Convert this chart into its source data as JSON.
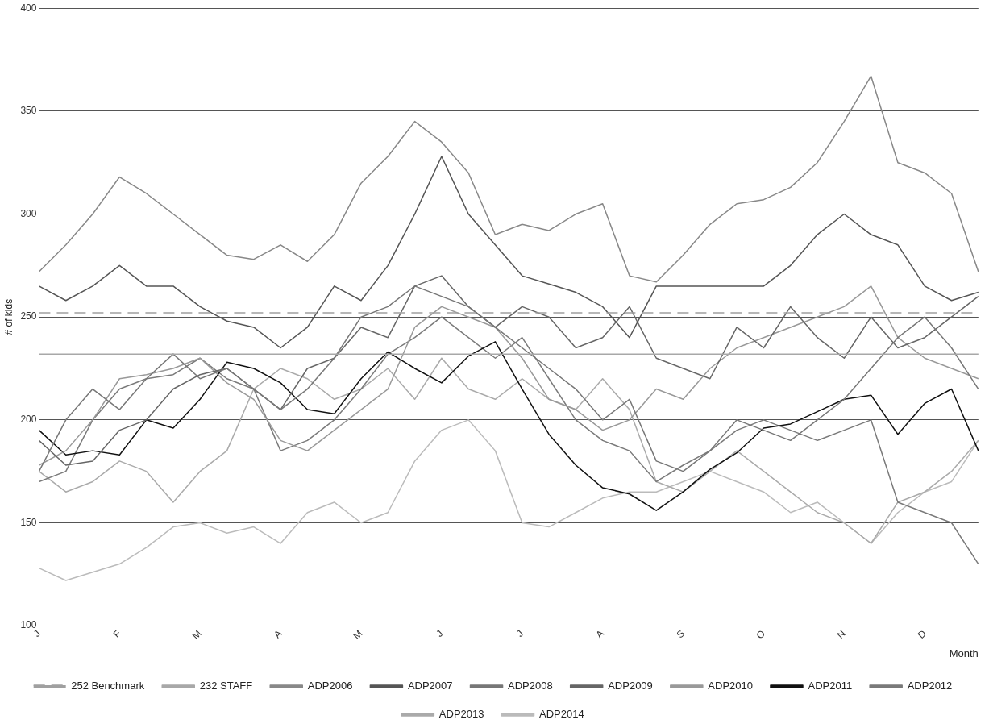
{
  "chart_data": {
    "type": "line",
    "xlabel": "Month",
    "ylabel": "# of kids",
    "ylim": [
      100,
      400
    ],
    "categories": [
      "J",
      null,
      null,
      "F",
      null,
      null,
      "M",
      null,
      null,
      "A",
      null,
      null,
      "M",
      null,
      null,
      "J",
      null,
      null,
      "J",
      null,
      null,
      "A",
      null,
      null,
      "S",
      null,
      null,
      "O",
      null,
      null,
      "N",
      null,
      null,
      "D",
      null,
      null
    ],
    "yticks": [
      100,
      150,
      200,
      250,
      300,
      350,
      400
    ],
    "grid": "y",
    "legend": "bottom",
    "marker": "none",
    "series": [
      {
        "name": "252 Benchmark",
        "color": "#a0a0a0",
        "line_style": "dashed",
        "values": [
          252,
          252,
          252,
          252,
          252,
          252,
          252,
          252,
          252,
          252,
          252,
          252,
          252,
          252,
          252,
          252,
          252,
          252,
          252,
          252,
          252,
          252,
          252,
          252,
          252,
          252,
          252,
          252,
          252,
          252,
          252,
          252,
          252,
          252,
          252,
          252
        ]
      },
      {
        "name": "232 STAFF",
        "color": "#a8a8a8",
        "values": [
          232,
          232,
          232,
          232,
          232,
          232,
          232,
          232,
          232,
          232,
          232,
          232,
          232,
          232,
          232,
          232,
          232,
          232,
          232,
          232,
          232,
          232,
          232,
          232,
          232,
          232,
          232,
          232,
          232,
          232,
          232,
          232,
          232,
          232,
          232,
          232
        ]
      },
      {
        "name": "ADP2006",
        "color": "#888888",
        "values": [
          272,
          285,
          300,
          318,
          310,
          300,
          290,
          280,
          278,
          285,
          277,
          290,
          315,
          328,
          345,
          335,
          320,
          290,
          295,
          292,
          300,
          305,
          270,
          267,
          280,
          295,
          305,
          307,
          313,
          325,
          345,
          367,
          325,
          320,
          310,
          272
        ]
      },
      {
        "name": "ADP2007",
        "color": "#555555",
        "values": [
          265,
          258,
          265,
          275,
          265,
          265,
          255,
          248,
          245,
          235,
          245,
          265,
          258,
          275,
          300,
          328,
          300,
          285,
          270,
          266,
          262,
          255,
          240,
          265,
          265,
          265,
          265,
          265,
          275,
          290,
          300,
          290,
          285,
          265,
          258,
          262
        ]
      },
      {
        "name": "ADP2008",
        "color": "#777777",
        "values": [
          175,
          200,
          215,
          205,
          220,
          232,
          220,
          225,
          215,
          205,
          215,
          230,
          250,
          255,
          265,
          260,
          255,
          245,
          235,
          225,
          215,
          200,
          210,
          180,
          175,
          185,
          200,
          195,
          190,
          200,
          210,
          225,
          240,
          250,
          235,
          215
        ]
      },
      {
        "name": "ADP2009",
        "color": "#666666",
        "values": [
          190,
          178,
          180,
          195,
          200,
          215,
          222,
          225,
          215,
          205,
          225,
          230,
          245,
          240,
          265,
          270,
          255,
          245,
          255,
          250,
          235,
          240,
          255,
          230,
          225,
          220,
          245,
          235,
          255,
          240,
          230,
          250,
          235,
          240,
          250,
          260
        ]
      },
      {
        "name": "ADP2010",
        "color": "#999999",
        "values": [
          178,
          185,
          200,
          220,
          222,
          225,
          230,
          218,
          210,
          190,
          185,
          195,
          205,
          215,
          245,
          255,
          250,
          245,
          230,
          210,
          205,
          195,
          200,
          215,
          210,
          225,
          235,
          240,
          245,
          250,
          255,
          265,
          240,
          230,
          225,
          220
        ]
      },
      {
        "name": "ADP2011",
        "color": "#111111",
        "values": [
          195,
          183,
          185,
          183,
          200,
          196,
          210,
          228,
          225,
          218,
          205,
          203,
          220,
          233,
          225,
          218,
          231,
          238,
          215,
          193,
          178,
          167,
          164,
          156,
          165,
          176,
          184,
          196,
          198,
          204,
          210,
          212,
          193,
          208,
          215,
          185
        ]
      },
      {
        "name": "ADP2012",
        "color": "#7a7a7a",
        "values": [
          170,
          175,
          200,
          215,
          220,
          222,
          230,
          220,
          215,
          185,
          190,
          200,
          215,
          232,
          240,
          250,
          240,
          230,
          240,
          220,
          200,
          190,
          185,
          170,
          178,
          185,
          195,
          200,
          195,
          190,
          195,
          200,
          160,
          155,
          150,
          130
        ]
      },
      {
        "name": "ADP2013",
        "color": "#aaaaaa",
        "values": [
          175,
          165,
          170,
          180,
          175,
          160,
          175,
          185,
          215,
          225,
          220,
          210,
          215,
          225,
          210,
          230,
          215,
          210,
          220,
          210,
          205,
          220,
          205,
          170,
          165,
          175,
          185,
          175,
          165,
          155,
          150,
          140,
          160,
          165,
          175,
          190
        ]
      },
      {
        "name": "ADP2014",
        "color": "#bbbbbb",
        "values": [
          128,
          122,
          126,
          130,
          138,
          148,
          150,
          145,
          148,
          140,
          155,
          160,
          150,
          155,
          180,
          195,
          200,
          185,
          150,
          148,
          155,
          162,
          165,
          165,
          170,
          175,
          170,
          165,
          155,
          160,
          150,
          140,
          155,
          165,
          170,
          190
        ]
      }
    ]
  }
}
